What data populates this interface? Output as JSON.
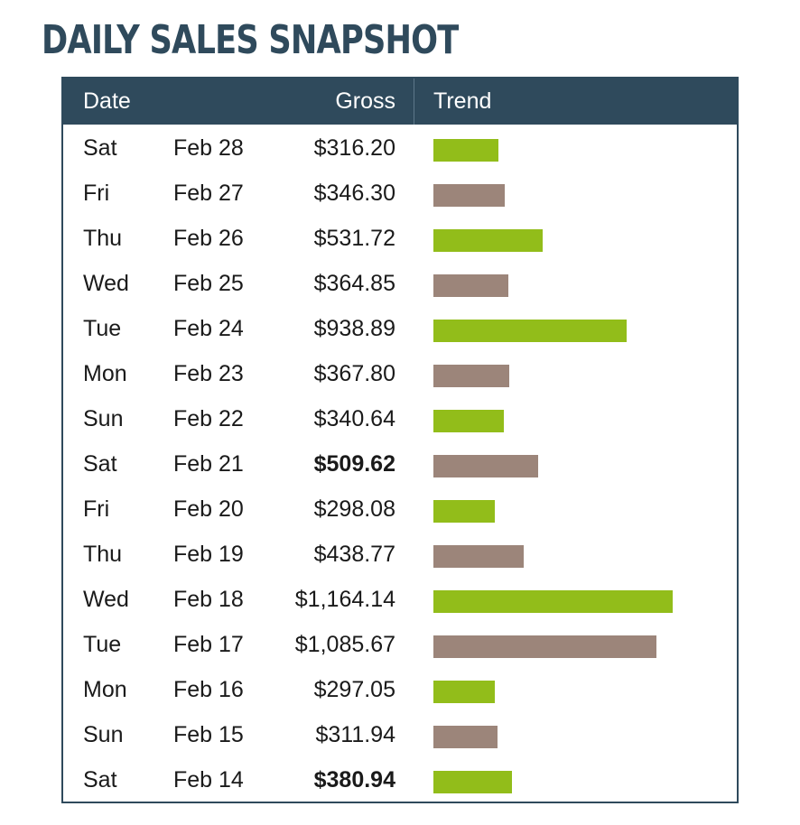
{
  "title": "DAILY SALES SNAPSHOT",
  "table": {
    "headers": {
      "date": "Date",
      "gross": "Gross",
      "trend": "Trend"
    },
    "colors": {
      "green": "#92bd1a",
      "taupe": "#9c857a",
      "header_bg": "#2f4a5c"
    },
    "rows": [
      {
        "day": "Sat",
        "date": "Feb 28",
        "gross": "$316.20",
        "value": 316.2,
        "color": "green",
        "bold": false
      },
      {
        "day": "Fri",
        "date": "Feb 27",
        "gross": "$346.30",
        "value": 346.3,
        "color": "taupe",
        "bold": false
      },
      {
        "day": "Thu",
        "date": "Feb 26",
        "gross": "$531.72",
        "value": 531.72,
        "color": "green",
        "bold": false
      },
      {
        "day": "Wed",
        "date": "Feb 25",
        "gross": "$364.85",
        "value": 364.85,
        "color": "taupe",
        "bold": false
      },
      {
        "day": "Tue",
        "date": "Feb 24",
        "gross": "$938.89",
        "value": 938.89,
        "color": "green",
        "bold": false
      },
      {
        "day": "Mon",
        "date": "Feb 23",
        "gross": "$367.80",
        "value": 367.8,
        "color": "taupe",
        "bold": false
      },
      {
        "day": "Sun",
        "date": "Feb 22",
        "gross": "$340.64",
        "value": 340.64,
        "color": "green",
        "bold": false
      },
      {
        "day": "Sat",
        "date": "Feb 21",
        "gross": "$509.62",
        "value": 509.62,
        "color": "taupe",
        "bold": true
      },
      {
        "day": "Fri",
        "date": "Feb 20",
        "gross": "$298.08",
        "value": 298.08,
        "color": "green",
        "bold": false
      },
      {
        "day": "Thu",
        "date": "Feb 19",
        "gross": "$438.77",
        "value": 438.77,
        "color": "taupe",
        "bold": false
      },
      {
        "day": "Wed",
        "date": "Feb 18",
        "gross": "$1,164.14",
        "value": 1164.14,
        "color": "green",
        "bold": false
      },
      {
        "day": "Tue",
        "date": "Feb 17",
        "gross": "$1,085.67",
        "value": 1085.67,
        "color": "taupe",
        "bold": false
      },
      {
        "day": "Mon",
        "date": "Feb 16",
        "gross": "$297.05",
        "value": 297.05,
        "color": "green",
        "bold": false
      },
      {
        "day": "Sun",
        "date": "Feb 15",
        "gross": "$311.94",
        "value": 311.94,
        "color": "taupe",
        "bold": false
      },
      {
        "day": "Sat",
        "date": "Feb 14",
        "gross": "$380.94",
        "value": 380.94,
        "color": "green",
        "bold": true
      }
    ]
  }
}
